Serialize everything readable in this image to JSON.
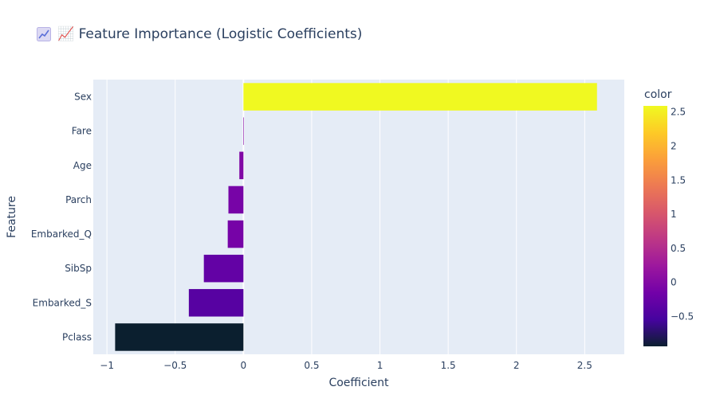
{
  "chart_data": {
    "type": "bar",
    "orientation": "horizontal",
    "title": "📈 Feature Importance (Logistic Coefficients)",
    "xlabel": "Coefficient",
    "ylabel": "Feature",
    "categories": [
      "Sex",
      "Fare",
      "Age",
      "Parch",
      "Embarked_Q",
      "SibSp",
      "Embarked_S",
      "Pclass"
    ],
    "values": [
      2.59,
      0.003,
      -0.03,
      -0.11,
      -0.115,
      -0.29,
      -0.4,
      -0.94
    ],
    "xlim": [
      -1.1,
      2.79
    ],
    "xticks": [
      -1,
      -0.5,
      0,
      0.5,
      1,
      1.5,
      2,
      2.5
    ],
    "xtick_labels": [
      "−1",
      "−0.5",
      "0",
      "0.5",
      "1",
      "1.5",
      "2",
      "2.5"
    ],
    "grid": true,
    "colorbar": {
      "title": "color",
      "range": [
        -0.94,
        2.59
      ],
      "ticks": [
        -0.5,
        0,
        0.5,
        1,
        1.5,
        2,
        2.5
      ],
      "tick_labels": [
        "−0.5",
        "0",
        "0.5",
        "1",
        "1.5",
        "2",
        "2.5"
      ],
      "colorscale": [
        [
          0.0,
          "#0d0887"
        ],
        [
          0.111,
          "#46039f"
        ],
        [
          0.222,
          "#7201a8"
        ],
        [
          0.333,
          "#9c179e"
        ],
        [
          0.444,
          "#bd3786"
        ],
        [
          0.556,
          "#d8576b"
        ],
        [
          0.667,
          "#ed7953"
        ],
        [
          0.778,
          "#fb9f3a"
        ],
        [
          0.889,
          "#fdca26"
        ],
        [
          1.0,
          "#f0f921"
        ]
      ],
      "low_color": "#0b1f2f"
    },
    "colors": {
      "plot_bg": "#e5ecf6",
      "grid": "#ffffff",
      "text": "#2a3f5f"
    }
  }
}
